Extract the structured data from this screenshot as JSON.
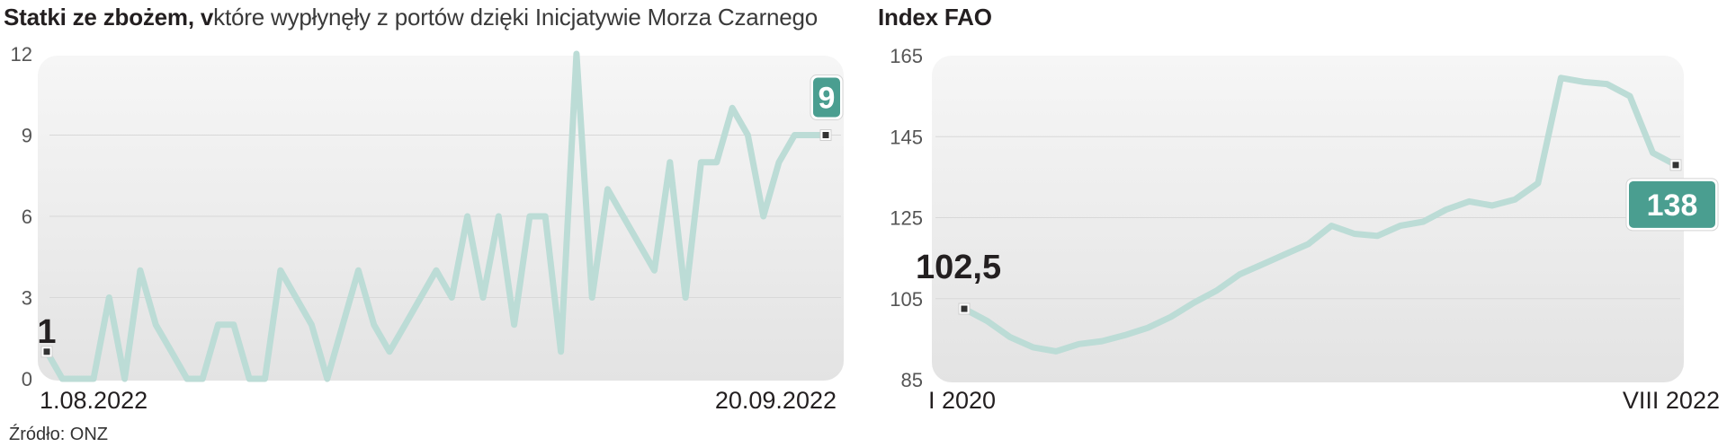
{
  "source": "Źródło: ONZ",
  "colors": {
    "line": "#bcdcd6",
    "badge": "#4a9e90",
    "plot_bg": "#ececec"
  },
  "chart_data": [
    {
      "type": "line",
      "title_bold": "Statki ze zbożem, v",
      "title_light": "które wypłynęły z portów dzięki Inicjatywie Morza Czarnego",
      "yticks": [
        "0",
        "3",
        "6",
        "9",
        "12"
      ],
      "ylim": [
        0,
        12
      ],
      "grid": true,
      "x_start_label": "1.08.2022",
      "x_end_label": "20.09.2022",
      "first_label": "1",
      "last_label": "9",
      "values": [
        1,
        0,
        0,
        0,
        3,
        0,
        4,
        2,
        1,
        0,
        0,
        2,
        2,
        0,
        0,
        4,
        3,
        2,
        0,
        2,
        4,
        2,
        1,
        2,
        3,
        4,
        3,
        6,
        3,
        6,
        2,
        6,
        6,
        1,
        12,
        3,
        7,
        6,
        5,
        4,
        8,
        3,
        8,
        8,
        10,
        9,
        6,
        8,
        9,
        9,
        9
      ]
    },
    {
      "type": "line",
      "title_bold": "Index FAO",
      "yticks": [
        "85",
        "105",
        "125",
        "145",
        "165"
      ],
      "ylim": [
        85,
        165
      ],
      "grid": true,
      "x_start_label": "I 2020",
      "x_end_label": "VIII 2022",
      "first_label": "102,5",
      "last_label": "138",
      "values": [
        102.5,
        99.5,
        95.5,
        93,
        92,
        93.8,
        94.5,
        96,
        97.8,
        100.5,
        104,
        107,
        111,
        113.5,
        116,
        118.5,
        123,
        121,
        120.5,
        123,
        124,
        127,
        129,
        128,
        129.5,
        133.5,
        159.5,
        158.5,
        158,
        155,
        141,
        138
      ]
    }
  ]
}
